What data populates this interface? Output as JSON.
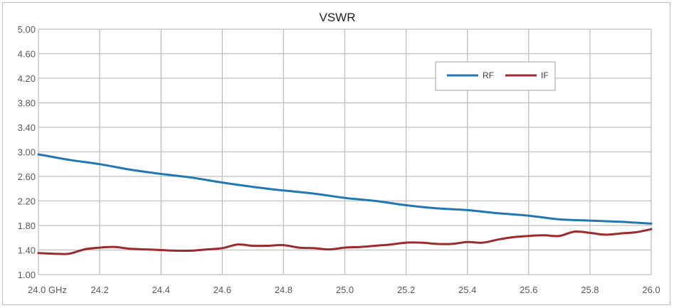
{
  "chart_data": {
    "type": "line",
    "title": "VSWR",
    "xlabel": "",
    "ylabel": "",
    "xlim": [
      24.0,
      26.0
    ],
    "ylim": [
      1.0,
      5.0
    ],
    "x_tick_labels": [
      "24.0  GHz",
      "24.2",
      "24.4",
      "24.6",
      "24.8",
      "25.0",
      "25.2",
      "25.4",
      "25.6",
      "25.8",
      "26.0"
    ],
    "x_ticks": [
      24.0,
      24.2,
      24.4,
      24.6,
      24.8,
      25.0,
      25.2,
      25.4,
      25.6,
      25.8,
      26.0
    ],
    "y_tick_labels": [
      "1.00",
      "1.40",
      "1.80",
      "2.20",
      "2.60",
      "3.00",
      "3.40",
      "3.80",
      "4.20",
      "4.60",
      "5.00"
    ],
    "y_ticks": [
      1.0,
      1.4,
      1.8,
      2.2,
      2.6,
      3.0,
      3.4,
      3.8,
      4.2,
      4.6,
      5.0
    ],
    "grid": true,
    "legend_position": "top-right",
    "series": [
      {
        "name": "RF",
        "color": "#1f77b4",
        "x": [
          24.0,
          24.1,
          24.2,
          24.3,
          24.4,
          24.5,
          24.6,
          24.7,
          24.8,
          24.9,
          25.0,
          25.1,
          25.2,
          25.3,
          25.4,
          25.5,
          25.6,
          25.7,
          25.8,
          25.9,
          26.0
        ],
        "values": [
          2.96,
          2.87,
          2.8,
          2.71,
          2.64,
          2.58,
          2.5,
          2.43,
          2.37,
          2.32,
          2.25,
          2.2,
          2.13,
          2.08,
          2.05,
          2.0,
          1.96,
          1.9,
          1.88,
          1.86,
          1.83
        ]
      },
      {
        "name": "IF",
        "color": "#9e2a2b",
        "x": [
          24.0,
          24.05,
          24.1,
          24.15,
          24.2,
          24.25,
          24.3,
          24.35,
          24.4,
          24.45,
          24.5,
          24.55,
          24.6,
          24.65,
          24.7,
          24.75,
          24.8,
          24.85,
          24.9,
          24.95,
          25.0,
          25.05,
          25.1,
          25.15,
          25.2,
          25.25,
          25.3,
          25.35,
          25.4,
          25.45,
          25.5,
          25.55,
          25.6,
          25.65,
          25.7,
          25.75,
          25.8,
          25.85,
          25.9,
          25.95,
          26.0
        ],
        "values": [
          1.35,
          1.34,
          1.34,
          1.41,
          1.44,
          1.45,
          1.42,
          1.41,
          1.4,
          1.39,
          1.39,
          1.41,
          1.43,
          1.49,
          1.47,
          1.47,
          1.48,
          1.44,
          1.43,
          1.41,
          1.44,
          1.45,
          1.47,
          1.49,
          1.52,
          1.52,
          1.5,
          1.5,
          1.53,
          1.52,
          1.57,
          1.61,
          1.63,
          1.64,
          1.63,
          1.7,
          1.68,
          1.65,
          1.67,
          1.69,
          1.74
        ]
      }
    ]
  }
}
